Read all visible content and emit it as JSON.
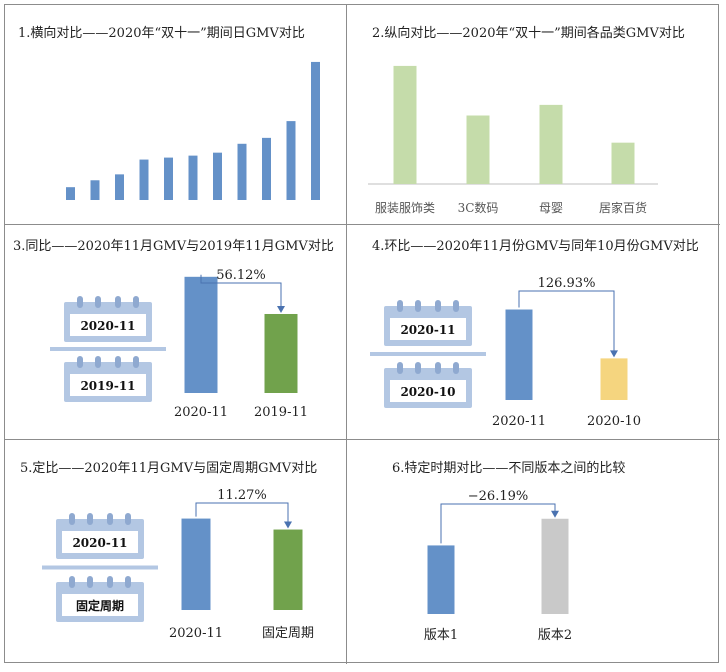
{
  "colors": {
    "blue": "#6491c8",
    "green": "#71a24c",
    "light_green": "#c5dcaa",
    "yellow": "#f5d57f",
    "gray": "#c9c9c9",
    "calendar": "#b3c7e3",
    "axis": "#bfbfbf",
    "arrow": "#4a72b0"
  },
  "chart_data": [
    {
      "type": "bar",
      "title": "1.横向对比——2020年“双十一”期间日GMV对比",
      "values": [
        13,
        20,
        26,
        41,
        43,
        45,
        48,
        57,
        63,
        80,
        140
      ],
      "ylim": [
        0,
        145
      ],
      "color": "blue"
    },
    {
      "type": "bar",
      "title": "2.纵向对比——2020年“双十一”期间各品类GMV对比",
      "categories": [
        "服装服饰类",
        "3C数码",
        "母婴",
        "居家百货"
      ],
      "values": [
        100,
        58,
        67,
        35
      ],
      "ylim": [
        0,
        105
      ],
      "color": "light_green"
    },
    {
      "type": "bar",
      "title": "3.同比——2020年11月GMV与2019年11月GMV对比",
      "categories": [
        "2020-11",
        "2019-11"
      ],
      "values": [
        100,
        68
      ],
      "ylim": [
        0,
        105
      ],
      "colors": [
        "blue",
        "green"
      ],
      "annotation": "56.12%",
      "calendar_labels": [
        "2020-11",
        "2019-11"
      ]
    },
    {
      "type": "bar",
      "title": "4.环比——2020年11月份GMV与同年10月份GMV对比",
      "categories": [
        "2020-11",
        "2020-10"
      ],
      "values": [
        100,
        46
      ],
      "ylim": [
        0,
        105
      ],
      "colors": [
        "blue",
        "yellow"
      ],
      "annotation": "126.93%",
      "calendar_labels": [
        "2020-11",
        "2020-10"
      ]
    },
    {
      "type": "bar",
      "title": "5.定比——2020年11月GMV与固定周期GMV对比",
      "categories": [
        "2020-11",
        "固定周期"
      ],
      "values": [
        100,
        88
      ],
      "ylim": [
        0,
        105
      ],
      "colors": [
        "blue",
        "green"
      ],
      "annotation": "11.27%",
      "calendar_labels": [
        "2020-11",
        "固定周期"
      ]
    },
    {
      "type": "bar",
      "title": "6.特定时期对比——不同版本之间的比较",
      "categories": [
        "版本1",
        "版本2"
      ],
      "values": [
        72,
        100
      ],
      "ylim": [
        0,
        105
      ],
      "colors": [
        "blue",
        "gray"
      ],
      "annotation": "−26.19%"
    }
  ]
}
